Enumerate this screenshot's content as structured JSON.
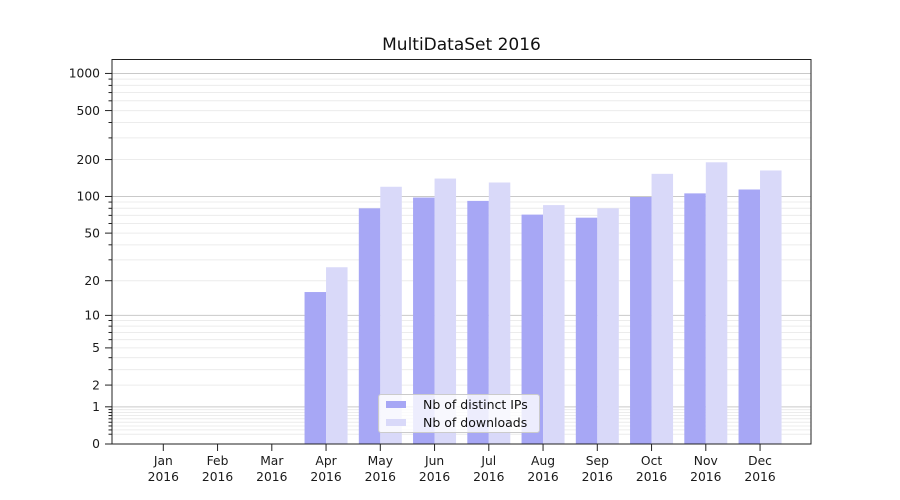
{
  "title": "MultiDataSet 2016",
  "chart_data": {
    "type": "bar",
    "title": "MultiDataSet 2016",
    "categories": [
      "Jan",
      "Feb",
      "Mar",
      "Apr",
      "May",
      "Jun",
      "Jul",
      "Aug",
      "Sep",
      "Oct",
      "Nov",
      "Dec"
    ],
    "x_tick_line2": "2016",
    "y_scale": "log1p",
    "y_tick_labels": [
      0,
      1,
      2,
      5,
      10,
      20,
      50,
      100,
      200,
      500,
      1000
    ],
    "ylim": [
      0,
      1300
    ],
    "grid": true,
    "legend_position": "lower center",
    "series": [
      {
        "name": "Nb of distinct IPs",
        "color": "#a7a7f5",
        "values": [
          0,
          0,
          0,
          16,
          80,
          98,
          92,
          71,
          67,
          99,
          106,
          114
        ]
      },
      {
        "name": "Nb of downloads",
        "color": "#d9d9f9",
        "values": [
          0,
          0,
          0,
          26,
          120,
          140,
          130,
          85,
          80,
          153,
          190,
          163
        ]
      }
    ],
    "colors": {
      "grid_minor": "#ececec",
      "grid_major": "#c9c9c9",
      "spine": "#222222",
      "tick": "#222222",
      "text": "#1a1a1a"
    }
  }
}
